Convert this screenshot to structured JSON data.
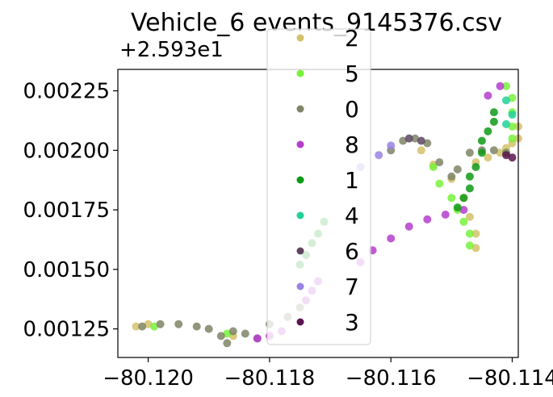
{
  "chart_data": {
    "type": "scatter",
    "title": "Vehicle_6 events_9145376.csv",
    "xlabel": "",
    "ylabel": "",
    "y_offset_label": "+2.593e1",
    "xlim": [
      -80.1205,
      -80.1139
    ],
    "ylim": [
      0.00113,
      0.00234
    ],
    "x_ticks": [
      -80.12,
      -80.118,
      -80.116,
      -80.114
    ],
    "x_tick_labels": [
      "−80.120",
      "−80.118",
      "−80.116",
      "−80.114"
    ],
    "y_ticks": [
      0.00125,
      0.0015,
      0.00175,
      0.002,
      0.00225
    ],
    "y_tick_labels": [
      "0.00125",
      "0.00150",
      "0.00175",
      "0.00200",
      "0.00225"
    ],
    "grid": false,
    "legend_position": "top-center",
    "legend": [
      {
        "label": "2",
        "color": "#d4c26a"
      },
      {
        "label": "5",
        "color": "#77f23a"
      },
      {
        "label": "0",
        "color": "#7f8466"
      },
      {
        "label": "8",
        "color": "#b53dcc"
      },
      {
        "label": "1",
        "color": "#0e9a16"
      },
      {
        "label": "4",
        "color": "#22d19a"
      },
      {
        "label": "6",
        "color": "#5d4560"
      },
      {
        "label": "7",
        "color": "#9a82e6"
      },
      {
        "label": "3",
        "color": "#5c1450"
      }
    ],
    "series": [
      {
        "name": "2",
        "color": "#d4c26a",
        "points": [
          [
            -80.1202,
            0.00126
          ],
          [
            -80.12,
            0.00127
          ],
          [
            -80.1186,
            0.00122
          ],
          [
            -80.1155,
            0.002
          ],
          [
            -80.1153,
            0.00194
          ],
          [
            -80.115,
            0.00188
          ],
          [
            -80.1148,
            0.0018
          ],
          [
            -80.1147,
            0.00172
          ],
          [
            -80.1146,
            0.00165
          ],
          [
            -80.1146,
            0.00159
          ],
          [
            -80.1139,
            0.0021
          ],
          [
            -80.1139,
            0.00205
          ],
          [
            -80.114,
            0.00203
          ],
          [
            -80.1141,
            0.00201
          ],
          [
            -80.1142,
            0.00199
          ],
          [
            -80.1144,
            0.00197
          ],
          [
            -80.1146,
            0.00195
          ]
        ]
      },
      {
        "name": "5",
        "color": "#77f23a",
        "points": [
          [
            -80.1199,
            0.00126
          ],
          [
            -80.1187,
            0.00123
          ],
          [
            -80.1153,
            0.00193
          ],
          [
            -80.1152,
            0.00186
          ],
          [
            -80.115,
            0.0018
          ],
          [
            -80.1149,
            0.00175
          ],
          [
            -80.1148,
            0.0017
          ],
          [
            -80.1147,
            0.00165
          ],
          [
            -80.1147,
            0.0016
          ],
          [
            -80.1141,
            0.00227
          ],
          [
            -80.114,
            0.00222
          ],
          [
            -80.114,
            0.00216
          ],
          [
            -80.114,
            0.0021
          ],
          [
            -80.114,
            0.00205
          ],
          [
            -80.1141,
            0.00199
          ]
        ]
      },
      {
        "name": "0",
        "color": "#7f8466",
        "points": [
          [
            -80.1201,
            0.00126
          ],
          [
            -80.1198,
            0.00127
          ],
          [
            -80.1195,
            0.00127
          ],
          [
            -80.1192,
            0.00126
          ],
          [
            -80.119,
            0.00125
          ],
          [
            -80.1188,
            0.00122
          ],
          [
            -80.1187,
            0.00119
          ],
          [
            -80.1186,
            0.00124
          ],
          [
            -80.1184,
            0.00123
          ],
          [
            -80.1182,
            0.00121
          ],
          [
            -80.118,
            0.00127
          ],
          [
            -80.1177,
            0.0013
          ],
          [
            -80.1175,
            0.00134
          ],
          [
            -80.116,
            0.002
          ],
          [
            -80.1158,
            0.00204
          ],
          [
            -80.1156,
            0.00205
          ],
          [
            -80.1154,
            0.00203
          ],
          [
            -80.1152,
            0.00195
          ],
          [
            -80.115,
            0.00189
          ],
          [
            -80.1149,
            0.00192
          ],
          [
            -80.1147,
            0.00199
          ],
          [
            -80.1145,
            0.002
          ],
          [
            -80.1143,
            0.002
          ],
          [
            -80.1141,
            0.00199
          ]
        ]
      },
      {
        "name": "8",
        "color": "#b53dcc",
        "points": [
          [
            -80.1182,
            0.00121
          ],
          [
            -80.118,
            0.00122
          ],
          [
            -80.1178,
            0.00124
          ],
          [
            -80.1165,
            0.00153
          ],
          [
            -80.1163,
            0.00158
          ],
          [
            -80.116,
            0.00163
          ],
          [
            -80.1157,
            0.00168
          ],
          [
            -80.1154,
            0.00171
          ],
          [
            -80.1151,
            0.00173
          ],
          [
            -80.1148,
            0.00175
          ],
          [
            -80.1174,
            0.00137
          ],
          [
            -80.1173,
            0.00141
          ],
          [
            -80.1172,
            0.00145
          ],
          [
            -80.1144,
            0.00223
          ],
          [
            -80.1142,
            0.00227
          ]
        ]
      },
      {
        "name": "1",
        "color": "#0e9a16",
        "points": [
          [
            -80.1175,
            0.00152
          ],
          [
            -80.1174,
            0.00156
          ],
          [
            -80.1173,
            0.00161
          ],
          [
            -80.1172,
            0.00165
          ],
          [
            -80.1171,
            0.0017
          ],
          [
            -80.1149,
            0.00176
          ],
          [
            -80.1148,
            0.0018
          ],
          [
            -80.1147,
            0.00184
          ],
          [
            -80.1147,
            0.00189
          ],
          [
            -80.1146,
            0.00193
          ],
          [
            -80.1145,
            0.00199
          ],
          [
            -80.1145,
            0.00204
          ],
          [
            -80.1144,
            0.00208
          ],
          [
            -80.1143,
            0.00212
          ],
          [
            -80.1143,
            0.00216
          ]
        ]
      },
      {
        "name": "4",
        "color": "#22d19a",
        "points": [
          [
            -80.1141,
            0.00221
          ],
          [
            -80.114,
            0.00215
          ],
          [
            -80.1141,
            0.00211
          ]
        ]
      },
      {
        "name": "6",
        "color": "#5d4560",
        "points": [
          [
            -80.1157,
            0.00205
          ],
          [
            -80.1155,
            0.00204
          ]
        ]
      },
      {
        "name": "7",
        "color": "#9a82e6",
        "points": [
          [
            -80.116,
            0.00202
          ],
          [
            -80.1162,
            0.00198
          ],
          [
            -80.1165,
            0.00193
          ]
        ]
      },
      {
        "name": "3",
        "color": "#5c1450",
        "points": [
          [
            -80.114,
            0.00197
          ],
          [
            -80.1141,
            0.00198
          ]
        ]
      }
    ]
  }
}
